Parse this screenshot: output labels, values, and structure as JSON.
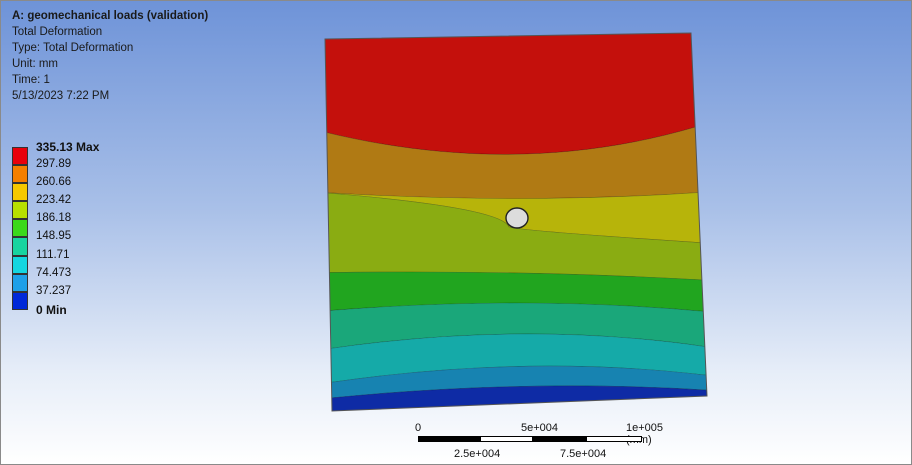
{
  "info": {
    "title": "A: geomechanical loads (validation)",
    "result": "Total Deformation",
    "type": "Type: Total Deformation",
    "unit": "Unit: mm",
    "time": "Time: 1",
    "date": "5/13/2023 7:22 PM"
  },
  "legend": {
    "labels": [
      "335.13 Max",
      "297.89",
      "260.66",
      "223.42",
      "186.18",
      "148.95",
      "111.71",
      "74.473",
      "37.237",
      "0 Min"
    ],
    "colors": [
      "#e8000b",
      "#f47f00",
      "#f5c800",
      "#b8e000",
      "#3bd81a",
      "#18d4a0",
      "#14d6e0",
      "#1ea0e8",
      "#0028d8"
    ]
  },
  "model_bands": [
    "#c4100c",
    "#b07a14",
    "#b7b40a",
    "#8aac12",
    "#21a51f",
    "#1aa77a",
    "#15aaa8",
    "#1783b1",
    "#0e2ba5"
  ],
  "scale": {
    "top_labels": [
      "0",
      "5e+004",
      "1e+005 (mm)"
    ],
    "bottom_labels": [
      "2.5e+004",
      "7.5e+004"
    ]
  }
}
